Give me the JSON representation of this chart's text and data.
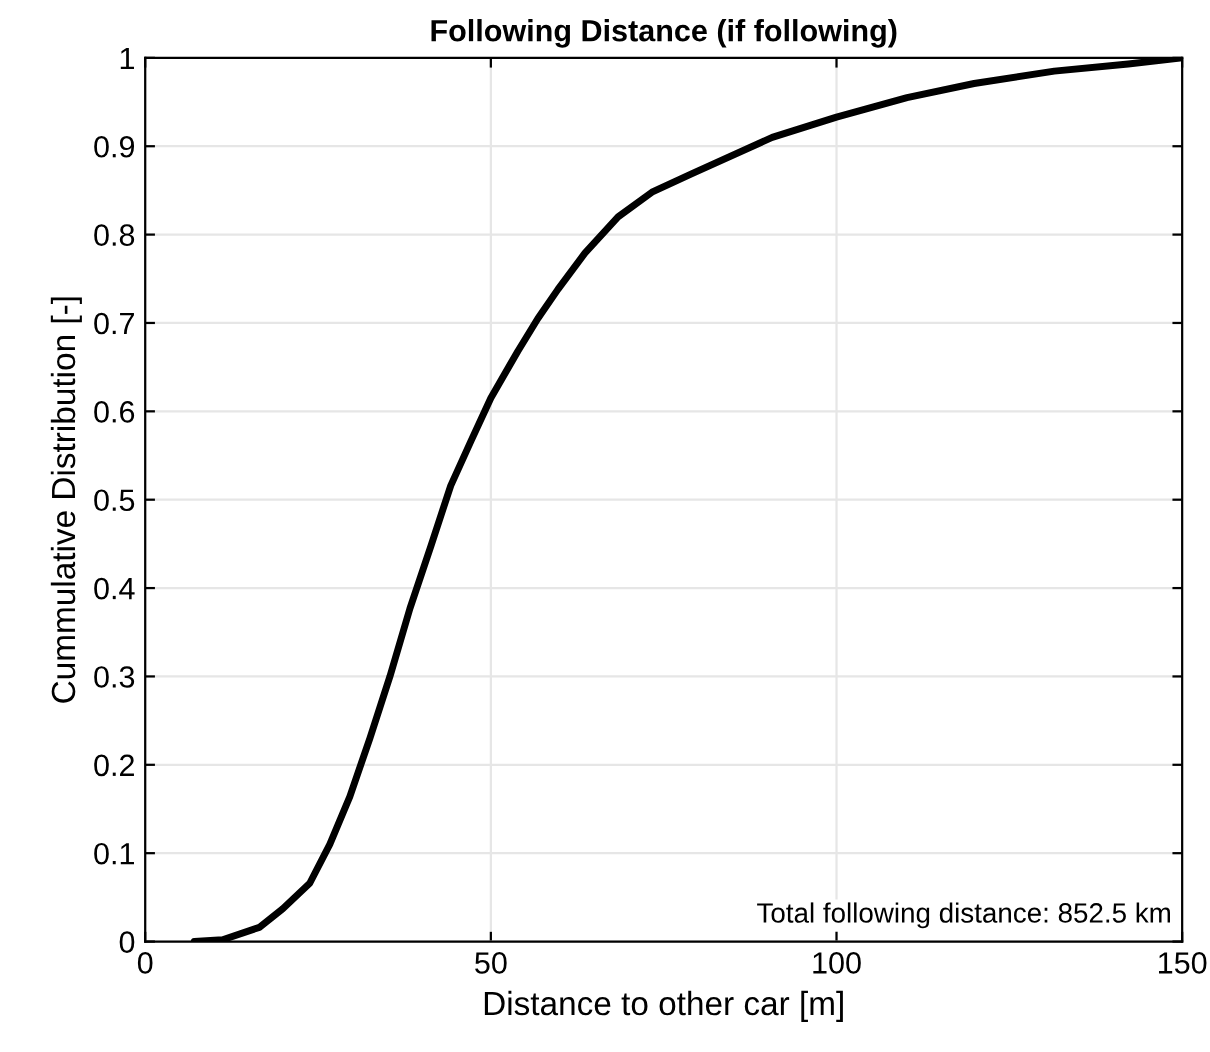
{
  "chart_data": {
    "type": "line",
    "title": "Following Distance (if following)",
    "xlabel": "Distance to other car [m]",
    "ylabel": "Cummulative Distribution [-]",
    "x": [
      7.1,
      11.2,
      16.5,
      19.9,
      23.8,
      26.7,
      29.6,
      32.5,
      35.4,
      38.3,
      41.3,
      44.2,
      47.1,
      50,
      53.9,
      56.8,
      59.7,
      63.6,
      68.4,
      73.3,
      79.1,
      90.7,
      100,
      110.2,
      119.9,
      131.5,
      142.2,
      150
    ],
    "series": [
      {
        "color": "#000000",
        "values": [
          0,
          0.002,
          0.016,
          0.037,
          0.066,
          0.11,
          0.164,
          0.23,
          0.3,
          0.377,
          0.447,
          0.516,
          0.566,
          0.615,
          0.668,
          0.705,
          0.738,
          0.779,
          0.82,
          0.848,
          0.869,
          0.91,
          0.933,
          0.955,
          0.971,
          0.985,
          0.993,
          1.0
        ]
      }
    ],
    "xlim": [
      0,
      150
    ],
    "xticks": [
      0,
      50,
      100,
      150
    ],
    "ylim": [
      0,
      1
    ],
    "yticks": [
      0,
      0.1,
      0.2,
      0.3,
      0.4,
      0.5,
      0.6,
      0.7,
      0.8,
      0.9,
      1
    ],
    "grid": true,
    "annotations": [
      "Total following distance: 852.5 km"
    ]
  }
}
